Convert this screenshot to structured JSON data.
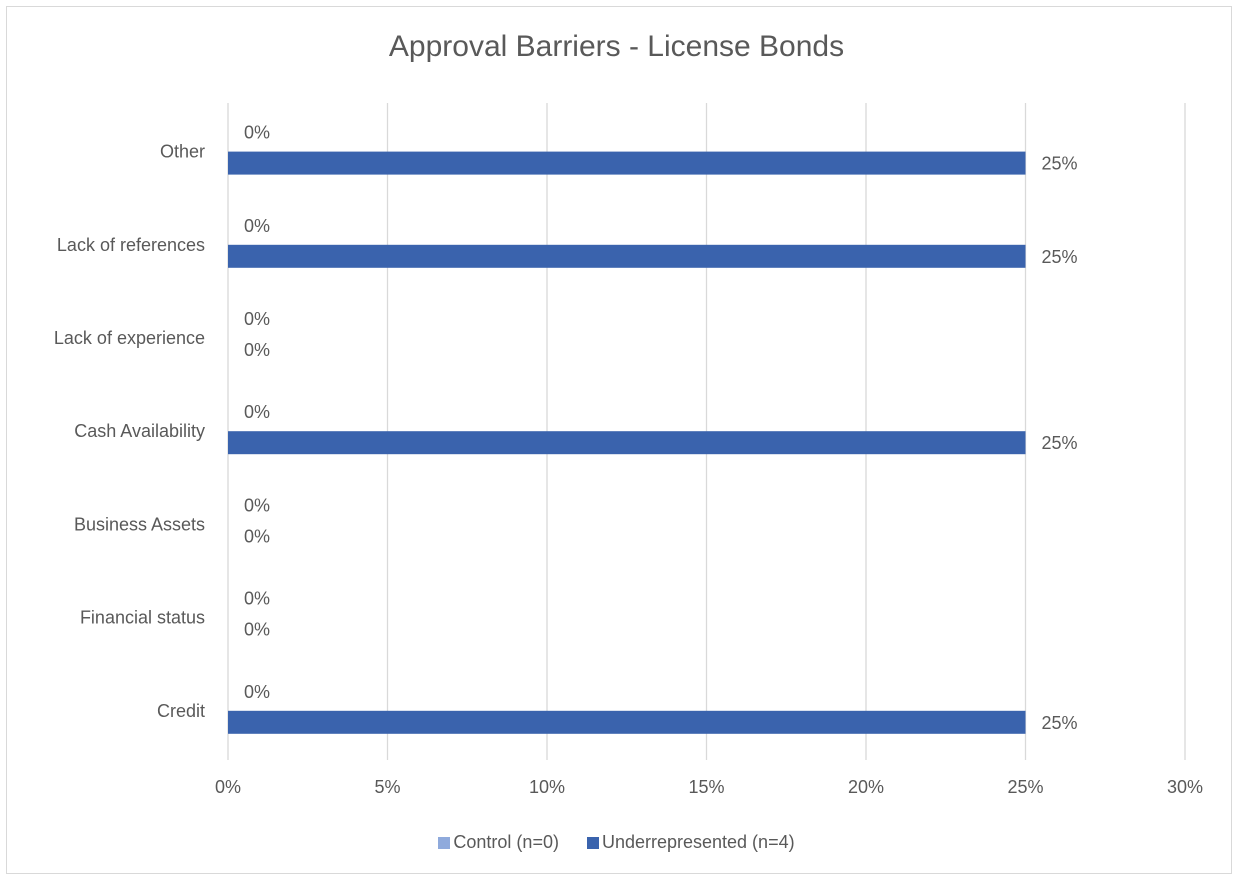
{
  "chart_data": {
    "type": "bar",
    "orientation": "horizontal",
    "title": "Approval Barriers - License Bonds",
    "categories": [
      "Other",
      "Lack of references",
      "Lack of experience",
      "Cash Availability",
      "Business Assets",
      "Financial status",
      "Credit"
    ],
    "series": [
      {
        "name": "Control (n=0)",
        "color": "#8faadc",
        "values": [
          0,
          0,
          0,
          0,
          0,
          0,
          0
        ],
        "labels": [
          "0%",
          "0%",
          "0%",
          "0%",
          "0%",
          "0%",
          "0%"
        ]
      },
      {
        "name": "Underrepresented (n=4)",
        "color": "#3a63ad",
        "values": [
          25,
          25,
          0,
          25,
          0,
          0,
          25
        ],
        "labels": [
          "25%",
          "25%",
          "0%",
          "25%",
          "0%",
          "0%",
          "25%"
        ]
      }
    ],
    "xlim": [
      0,
      30
    ],
    "xticks": [
      0,
      5,
      10,
      15,
      20,
      25,
      30
    ],
    "xtick_labels": [
      "0%",
      "5%",
      "10%",
      "15%",
      "20%",
      "25%",
      "30%"
    ],
    "grid": "vertical",
    "legend_position": "bottom"
  }
}
